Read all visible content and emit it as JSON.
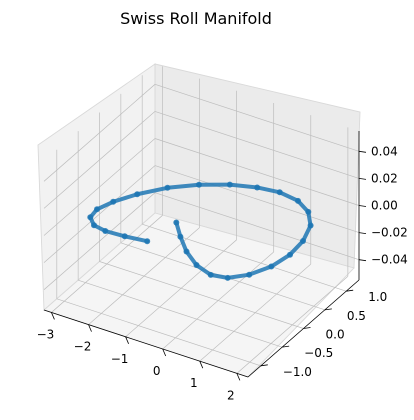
{
  "chart_data": {
    "type": "scatter",
    "projection": "3d",
    "title": "Swiss Roll Manifold",
    "xlabel": "",
    "ylabel": "",
    "zlabel": "",
    "grid": true,
    "xlim": [
      -3.2,
      2.3
    ],
    "ylim": [
      -1.3,
      1.3
    ],
    "zlim": [
      -0.055,
      0.055
    ],
    "xticks": [
      -3,
      -2,
      -1,
      0,
      1,
      2
    ],
    "xtick_labels": [
      "−3",
      "−2",
      "−1",
      "0",
      "1",
      "2"
    ],
    "yticks": [
      -1.0,
      -0.5,
      0.0,
      0.5,
      1.0
    ],
    "ytick_labels": [
      "−1.0",
      "−0.5",
      "0.0",
      "0.5",
      "1.0"
    ],
    "zticks": [
      -0.04,
      -0.02,
      0.0,
      0.02,
      0.04
    ],
    "ztick_labels": [
      "−0.04",
      "−0.02",
      "0.00",
      "0.02",
      "0.04"
    ],
    "series": [
      {
        "color": "#1f77b4",
        "z_constant": 0.0,
        "x": [
          -0.9,
          -0.5,
          -0.05,
          0.45,
          0.95,
          1.35,
          1.7,
          1.95,
          2.05,
          2.0,
          1.8,
          1.45,
          1.0,
          0.45,
          -0.1,
          -0.7,
          -1.3,
          -1.85,
          -2.3,
          -2.6,
          -2.75,
          -2.7,
          -2.45,
          -2.1,
          -1.6,
          -1.05
        ],
        "y": [
          -0.2,
          -0.45,
          -0.7,
          -0.9,
          -1.0,
          -0.95,
          -0.75,
          -0.45,
          -0.1,
          0.25,
          0.6,
          0.85,
          1.0,
          1.05,
          1.0,
          0.88,
          0.68,
          0.42,
          0.1,
          -0.2,
          -0.45,
          -0.65,
          -0.78,
          -0.82,
          -0.8,
          -0.75
        ]
      }
    ]
  }
}
